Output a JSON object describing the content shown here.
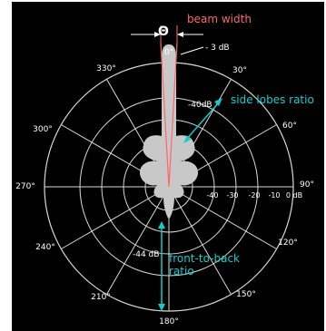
{
  "diagram": {
    "background_color": "#000000",
    "grid_color": "#d8d8d8",
    "lobe_color": "#c8c8c8",
    "red_color": "#ff6666",
    "cyan_color": "#11cdcd",
    "text_color": "#ffffff",
    "beam_width_label": "beam width",
    "theta_symbol": "Θ",
    "minus3db_label": "- 3 dB",
    "minus40db_label": "-40dB",
    "side_lobes_label": "side lobes ratio",
    "minus44db_label": "-44 dB",
    "front_to_back_line1": "front-to-back",
    "front_to_back_line2": "ratio",
    "angle_labels": [
      {
        "angle": 0,
        "text": "0°"
      },
      {
        "angle": 30,
        "text": "30°"
      },
      {
        "angle": 60,
        "text": "60°"
      },
      {
        "angle": 90,
        "text": "90°"
      },
      {
        "angle": 120,
        "text": "120°"
      },
      {
        "angle": 150,
        "text": "150°"
      },
      {
        "angle": 180,
        "text": "180°"
      },
      {
        "angle": 210,
        "text": "210°"
      },
      {
        "angle": 240,
        "text": "240°"
      },
      {
        "angle": 270,
        "text": "270°"
      },
      {
        "angle": 300,
        "text": "300°"
      },
      {
        "angle": 330,
        "text": "330°"
      }
    ],
    "ring_labels": [
      "-40",
      "-30",
      "-20",
      "-10",
      "0 dB"
    ]
  }
}
